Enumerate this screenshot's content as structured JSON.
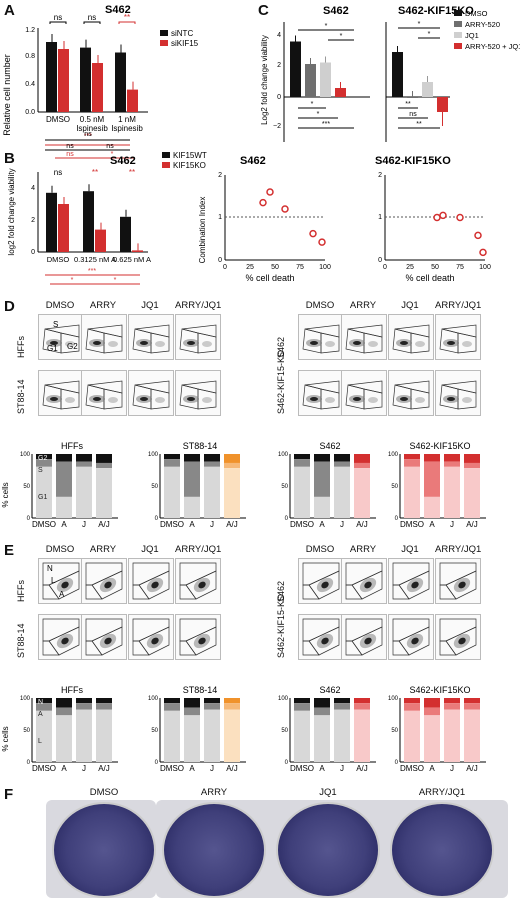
{
  "panels": {
    "A": {
      "letter": "A",
      "title": "S462",
      "ylabel": "Relative cell number",
      "legend": [
        "siNTC",
        "siKIF15"
      ],
      "xticks": [
        "DMSO",
        "0.5 nM\nIspinesib",
        "1 nM\nIspinesib"
      ],
      "sig": [
        "ns",
        "ns",
        "**"
      ],
      "bottom_sig": [
        "***",
        "ns",
        "ns",
        "ns",
        "ns",
        "ns",
        "*"
      ]
    },
    "B": {
      "letter": "B",
      "title": "S462",
      "ylabel": "log2 fold change viability",
      "legend": [
        "KIF15WT",
        "KIF15KO"
      ],
      "xticks": [
        "DMSO",
        "0.3125 nM A",
        "0.625 nM A"
      ],
      "sig": [
        "ns",
        "**",
        "**"
      ],
      "bottom_sig": [
        "***",
        "*",
        "*"
      ]
    },
    "C": {
      "letter": "C",
      "left_title": "S462",
      "right_title": "S462-KIF15KO",
      "ylabel": "Log2 fold change viability",
      "legend": [
        "DMSO",
        "ARRY-520",
        "JQ1",
        "ARRY-520 + JQ1"
      ],
      "left_sig": [
        "*",
        "*",
        "*",
        "*",
        "***"
      ],
      "right_sig": [
        "*",
        "*",
        "**",
        "ns",
        "**"
      ],
      "ci_left_title": "S462",
      "ci_right_title": "S462-KIF15KO",
      "ci_ylabel": "Combination Index",
      "ci_xlabel": "% cell death"
    },
    "D": {
      "letter": "D",
      "cols_left": [
        "DMSO",
        "ARRY",
        "JQ1",
        "ARRY/JQ1"
      ],
      "cols_right": [
        "DMSO",
        "ARRY",
        "JQ1",
        "ARRY/JQ1"
      ],
      "rows_left": [
        "HFFs",
        "ST88-14"
      ],
      "rows_right": [
        "S462",
        "S462-KIF15-KO"
      ],
      "gates": [
        "S",
        "G1",
        "G2"
      ],
      "bar_titles": [
        "HFFs",
        "ST88-14",
        "S462",
        "S462-KIF15KO"
      ],
      "bar_ylabel": "% cells",
      "bar_xticks": [
        "DMSO",
        "A",
        "J",
        "A/J"
      ],
      "phase_labels": [
        "G2",
        "S",
        "G1"
      ]
    },
    "E": {
      "letter": "E",
      "cols_left": [
        "DMSO",
        "ARRY",
        "JQ1",
        "ARRY/JQ1"
      ],
      "cols_right": [
        "DMSO",
        "ARRY",
        "JQ1",
        "ARRY/JQ1"
      ],
      "rows_left": [
        "HFFs",
        "ST88-14"
      ],
      "rows_right": [
        "S462",
        "S462-KIF15-KO"
      ],
      "gates": [
        "N",
        "L",
        "A"
      ],
      "bar_titles": [
        "HFFs",
        "ST88-14",
        "S462",
        "S462-KIF15KO"
      ],
      "bar_ylabel": "% cells",
      "bar_xticks": [
        "DMSO",
        "A",
        "J",
        "A/J"
      ],
      "phase_labels": [
        "N",
        "A",
        "L"
      ]
    },
    "F": {
      "letter": "F",
      "wells": [
        "DMSO",
        "ARRY",
        "JQ1",
        "ARRY/JQ1"
      ]
    }
  },
  "colors": {
    "black": "#111111",
    "red": "#d32f2f",
    "grey": "#6f6f6f",
    "lightgrey": "#cfcfcf",
    "orange": "#f0922b",
    "pink": "#f3b0b0"
  },
  "chart_data": [
    {
      "type": "bar",
      "title": "S462",
      "ylabel": "Relative cell number",
      "ylim": [
        0,
        1.2
      ],
      "categories": [
        "DMSO",
        "0.5 nM Ispinesib",
        "1 nM Ispinesib"
      ],
      "series": [
        {
          "name": "siNTC",
          "values": [
            1.0,
            0.92,
            0.85
          ]
        },
        {
          "name": "siKIF15",
          "values": [
            0.9,
            0.7,
            0.32
          ]
        }
      ]
    },
    {
      "type": "bar",
      "title": "S462",
      "ylabel": "log2 fold change viability",
      "ylim": [
        0,
        5
      ],
      "categories": [
        "DMSO",
        "0.3125 nM A",
        "0.625 nM A"
      ],
      "series": [
        {
          "name": "KIF15WT",
          "values": [
            3.7,
            3.8,
            2.2
          ]
        },
        {
          "name": "KIF15KO",
          "values": [
            3.0,
            1.4,
            0.1
          ]
        }
      ]
    },
    {
      "type": "bar",
      "title": "S462",
      "ylabel": "Log2 fold change viability",
      "ylim": [
        -3,
        5
      ],
      "categories": [
        "DMSO",
        "ARRY-520",
        "JQ1",
        "ARRY-520 + JQ1"
      ],
      "values": [
        3.7,
        2.2,
        2.3,
        0.6
      ]
    },
    {
      "type": "bar",
      "title": "S462-KIF15KO",
      "ylim": [
        -3,
        5
      ],
      "categories": [
        "DMSO",
        "ARRY-520",
        "JQ1",
        "ARRY-520 + JQ1"
      ],
      "values": [
        3.0,
        0.0,
        1.0,
        -1.0
      ]
    },
    {
      "type": "scatter",
      "title": "S462",
      "xlabel": "% cell death",
      "ylabel": "Combination Index",
      "xlim": [
        0,
        100
      ],
      "ylim": [
        0,
        2
      ],
      "x": [
        38,
        45,
        60,
        88,
        97
      ],
      "y": [
        1.35,
        1.6,
        1.2,
        0.62,
        0.42
      ]
    },
    {
      "type": "scatter",
      "title": "S462-KIF15KO",
      "xlabel": "% cell death",
      "xlim": [
        0,
        100
      ],
      "ylim": [
        0,
        2
      ],
      "x": [
        52,
        58,
        75,
        93,
        98
      ],
      "y": [
        1.0,
        1.05,
        1.0,
        0.58,
        0.18
      ]
    }
  ]
}
